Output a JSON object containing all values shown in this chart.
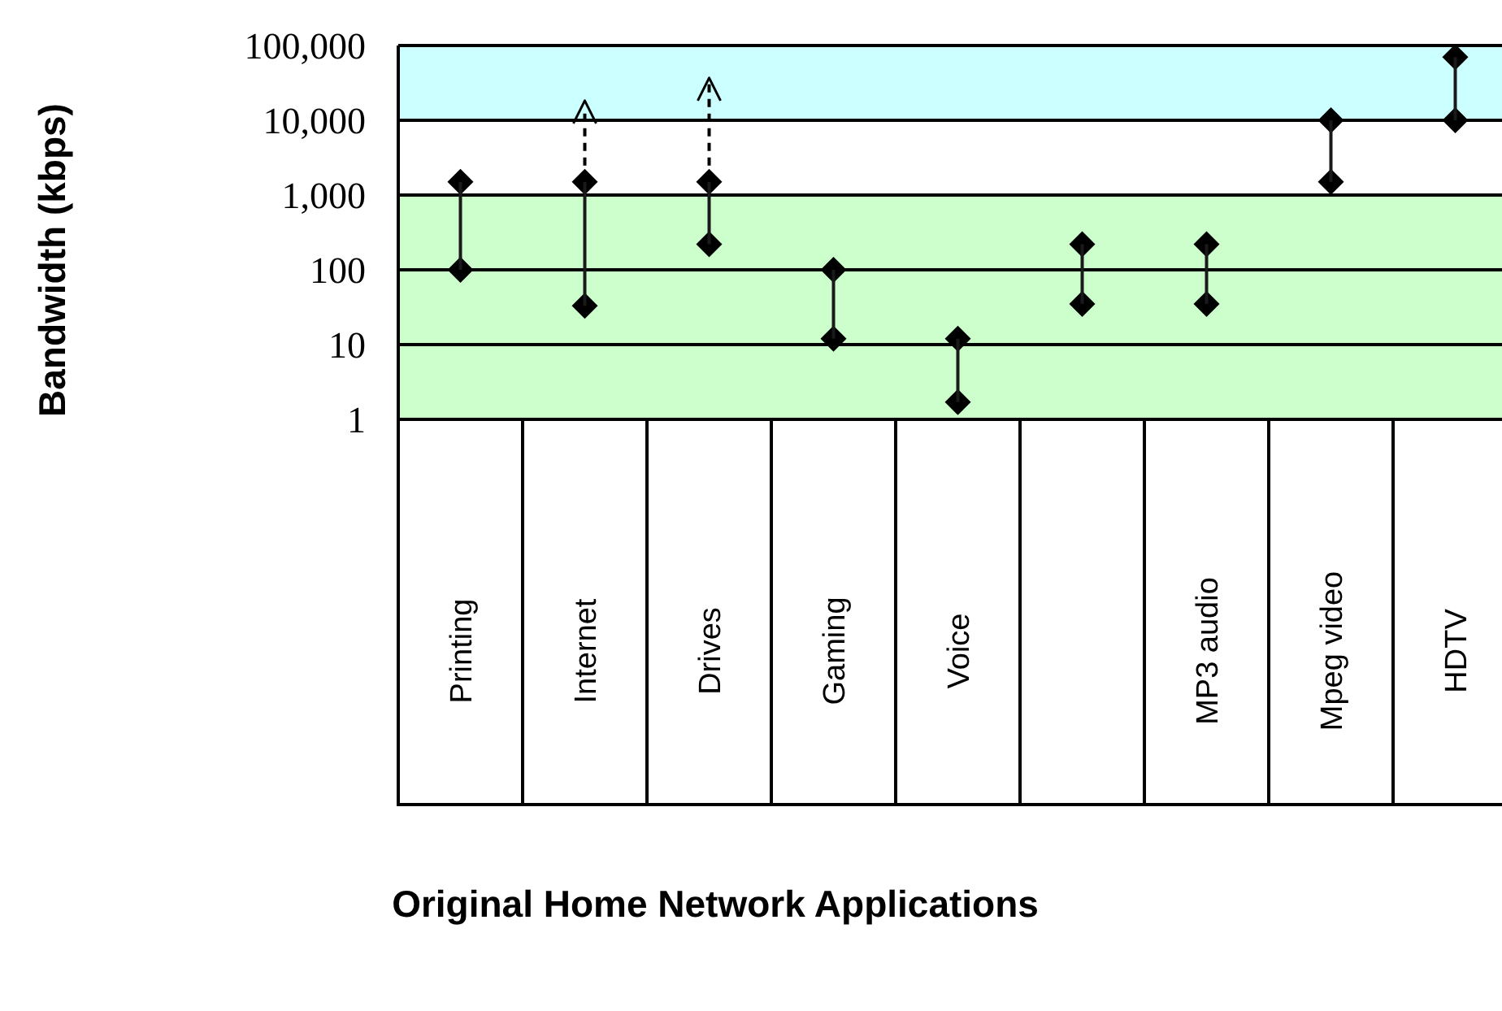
{
  "chart_data": {
    "type": "bar",
    "ylabel": "Bandwidth (kbps)",
    "annotations": [
      "Original Home Network Applications"
    ],
    "categories": [
      "Printing",
      "Internet",
      "Drives",
      "Gaming",
      "Voice",
      null,
      "MP3 audio",
      "Mpeg video",
      "HDTV"
    ],
    "log": "y",
    "ylim": [
      1,
      100000
    ],
    "yticks": [
      1,
      10,
      100,
      {
        "value": 1000,
        "label": "1,000"
      },
      {
        "value": 10000,
        "label": "10,000"
      },
      {
        "value": 100000,
        "label": "100,000"
      }
    ],
    "grid": "y",
    "series": [
      {
        "color": "#1a1a1a",
        "base": [
          100,
          33,
          220,
          12,
          1.7,
          35,
          35,
          1500,
          10000
        ],
        "values": [
          1400,
          1467,
          1280,
          88,
          10.3,
          185,
          185,
          8500,
          60000
        ]
      },
      {
        "type": "scatter",
        "color": "#000000",
        "marker": "diamond",
        "values": [
          1500,
          1500,
          1500,
          100,
          12,
          220,
          220,
          10000,
          70000
        ]
      },
      {
        "type": "scatter",
        "color": "#000000",
        "marker": "diamond",
        "values": [
          100,
          33,
          220,
          12,
          1.7,
          35,
          35,
          1500,
          10000
        ]
      }
    ],
    "bands": [
      {
        "axis": "y",
        "from": 1,
        "to": 1000,
        "color": "#ccffcc"
      },
      {
        "axis": "y",
        "from": 10000,
        "to": 100000,
        "color": "#ccffff"
      }
    ]
  }
}
